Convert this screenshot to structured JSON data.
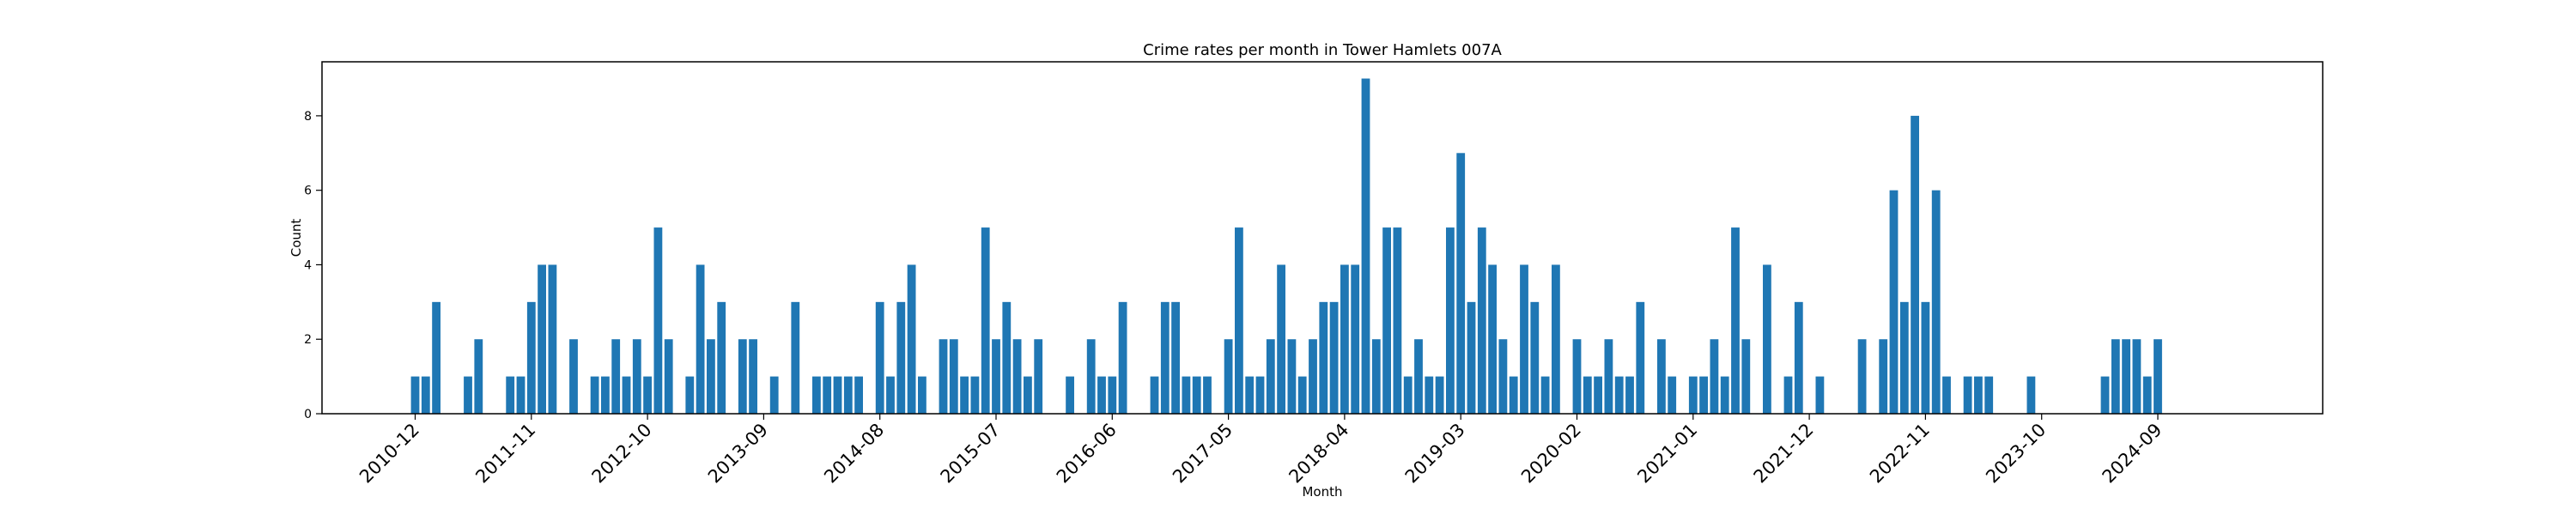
{
  "chart_data": {
    "type": "bar",
    "title": "Crime rates per month in Tower Hamlets 007A",
    "xlabel": "Month",
    "ylabel": "Count",
    "ylim": [
      0,
      9.45
    ],
    "yticks": [
      0,
      2,
      4,
      6,
      8
    ],
    "xticks": [
      "2010-12",
      "2011-11",
      "2012-10",
      "2013-09",
      "2014-08",
      "2015-07",
      "2016-06",
      "2017-05",
      "2018-04",
      "2019-03",
      "2020-02",
      "2021-01",
      "2021-12",
      "2022-11",
      "2023-10",
      "2024-09"
    ],
    "bar_color": "#1f77b4",
    "categories": [
      "2010-12",
      "2011-01",
      "2011-02",
      "2011-05",
      "2011-06",
      "2011-09",
      "2011-10",
      "2011-11",
      "2011-12",
      "2012-01",
      "2012-03",
      "2012-05",
      "2012-06",
      "2012-07",
      "2012-08",
      "2012-09",
      "2012-10",
      "2012-11",
      "2012-12",
      "2013-02",
      "2013-03",
      "2013-04",
      "2013-05",
      "2013-07",
      "2013-08",
      "2013-10",
      "2013-12",
      "2014-02",
      "2014-03",
      "2014-04",
      "2014-05",
      "2014-06",
      "2014-08",
      "2014-09",
      "2014-10",
      "2014-11",
      "2014-12",
      "2015-02",
      "2015-03",
      "2015-04",
      "2015-05",
      "2015-06",
      "2015-07",
      "2015-08",
      "2015-09",
      "2015-10",
      "2015-11",
      "2016-02",
      "2016-04",
      "2016-05",
      "2016-06",
      "2016-07",
      "2016-10",
      "2016-11",
      "2016-12",
      "2017-01",
      "2017-02",
      "2017-03",
      "2017-05",
      "2017-06",
      "2017-07",
      "2017-08",
      "2017-09",
      "2017-10",
      "2017-11",
      "2017-12",
      "2018-01",
      "2018-02",
      "2018-03",
      "2018-04",
      "2018-05",
      "2018-06",
      "2018-07",
      "2018-08",
      "2018-09",
      "2018-10",
      "2018-11",
      "2018-12",
      "2019-01",
      "2019-02",
      "2019-03",
      "2019-04",
      "2019-05",
      "2019-06",
      "2019-07",
      "2019-08",
      "2019-09",
      "2019-10",
      "2019-11",
      "2019-12",
      "2020-02",
      "2020-03",
      "2020-04",
      "2020-05",
      "2020-06",
      "2020-07",
      "2020-08",
      "2020-10",
      "2020-11",
      "2021-01",
      "2021-02",
      "2021-03",
      "2021-04",
      "2021-05",
      "2021-06",
      "2021-08",
      "2021-10",
      "2021-11",
      "2022-01",
      "2022-05",
      "2022-07",
      "2022-08",
      "2022-09",
      "2022-10",
      "2022-11",
      "2022-12",
      "2023-01",
      "2023-03",
      "2023-04",
      "2023-05",
      "2023-09",
      "2024-04",
      "2024-05",
      "2024-06",
      "2024-07",
      "2024-08",
      "2024-09"
    ],
    "values": [
      1,
      1,
      3,
      1,
      2,
      1,
      1,
      3,
      4,
      4,
      2,
      1,
      1,
      2,
      1,
      2,
      1,
      5,
      2,
      1,
      4,
      2,
      3,
      2,
      2,
      1,
      3,
      1,
      1,
      1,
      1,
      1,
      3,
      1,
      3,
      4,
      1,
      2,
      2,
      1,
      1,
      5,
      2,
      3,
      2,
      1,
      2,
      1,
      2,
      1,
      1,
      3,
      1,
      3,
      3,
      1,
      1,
      1,
      2,
      5,
      1,
      1,
      2,
      4,
      2,
      1,
      2,
      3,
      3,
      4,
      4,
      9,
      2,
      5,
      5,
      1,
      2,
      1,
      1,
      5,
      7,
      3,
      5,
      4,
      2,
      1,
      4,
      3,
      1,
      4,
      2,
      1,
      1,
      2,
      1,
      1,
      3,
      2,
      1,
      1,
      1,
      2,
      1,
      5,
      2,
      4,
      1,
      3,
      1,
      2,
      2,
      6,
      3,
      8,
      3,
      6,
      1,
      1,
      1,
      1,
      1,
      1,
      2,
      2,
      2,
      1,
      2
    ]
  }
}
